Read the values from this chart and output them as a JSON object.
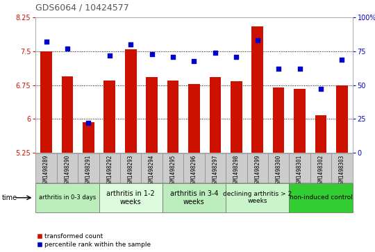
{
  "title": "GDS6064 / 10424577",
  "samples": [
    "GSM1498289",
    "GSM1498290",
    "GSM1498291",
    "GSM1498292",
    "GSM1498293",
    "GSM1498294",
    "GSM1498295",
    "GSM1498296",
    "GSM1498297",
    "GSM1498298",
    "GSM1498299",
    "GSM1498300",
    "GSM1498301",
    "GSM1498302",
    "GSM1498303"
  ],
  "bar_values": [
    7.5,
    6.95,
    5.93,
    6.85,
    7.55,
    6.93,
    6.85,
    6.78,
    6.93,
    6.83,
    8.05,
    6.7,
    6.67,
    6.08,
    6.75
  ],
  "dot_values": [
    82,
    77,
    22,
    72,
    80,
    73,
    71,
    68,
    74,
    71,
    83,
    62,
    62,
    47,
    69
  ],
  "ylim_left": [
    5.25,
    8.25
  ],
  "ylim_right": [
    0,
    100
  ],
  "yticks_left": [
    5.25,
    6.0,
    6.75,
    7.5,
    8.25
  ],
  "yticks_right": [
    0,
    25,
    50,
    75,
    100
  ],
  "bar_color": "#cc1100",
  "dot_color": "#0000cc",
  "groups": [
    {
      "label": "arthritis in 0-3 days",
      "start": 0,
      "end": 3,
      "color": "#bbeebb",
      "fontsize": 6
    },
    {
      "label": "arthritis in 1-2\nweeks",
      "start": 3,
      "end": 6,
      "color": "#ddfcdd",
      "fontsize": 7
    },
    {
      "label": "arthritis in 3-4\nweeks",
      "start": 6,
      "end": 9,
      "color": "#bbeebc",
      "fontsize": 7
    },
    {
      "label": "declining arthritis > 2\nweeks",
      "start": 9,
      "end": 12,
      "color": "#caf5ca",
      "fontsize": 6.5
    },
    {
      "label": "non-induced control",
      "start": 12,
      "end": 15,
      "color": "#33cc33",
      "fontsize": 6.5
    }
  ],
  "bar_width": 0.55,
  "left_tick_color": "#cc1100",
  "right_tick_color": "#0000cc",
  "legend_red_label": "transformed count",
  "legend_blue_label": "percentile rank within the sample"
}
